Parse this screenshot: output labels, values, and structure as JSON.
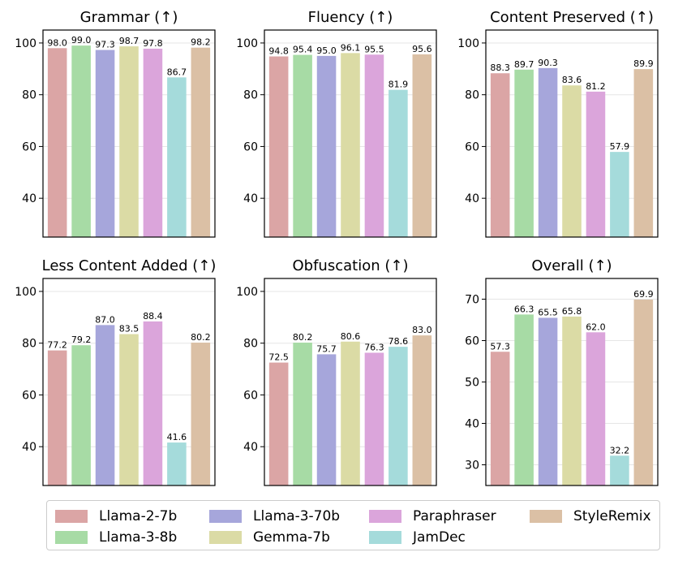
{
  "chart_data": [
    {
      "type": "bar",
      "title": "Grammar (↑)",
      "categories": [
        "Llama-2-7b",
        "Llama-3-8b",
        "Llama-3-70b",
        "Gemma-7b",
        "Paraphraser",
        "JamDec",
        "StyleRemix"
      ],
      "values": [
        98.0,
        99.0,
        97.3,
        98.7,
        97.8,
        86.7,
        98.2
      ],
      "value_labels": [
        "98.0",
        "99.0",
        "97.3",
        "98.7",
        "97.8",
        "86.7",
        "98.2"
      ],
      "ylim": [
        25,
        105
      ],
      "yticks": [
        40,
        60,
        80,
        100
      ],
      "ytick_labels": [
        "40",
        "60",
        "80",
        "100"
      ],
      "grid": true
    },
    {
      "type": "bar",
      "title": "Fluency (↑)",
      "categories": [
        "Llama-2-7b",
        "Llama-3-8b",
        "Llama-3-70b",
        "Gemma-7b",
        "Paraphraser",
        "JamDec",
        "StyleRemix"
      ],
      "values": [
        94.8,
        95.4,
        95.0,
        96.1,
        95.5,
        81.9,
        95.6
      ],
      "value_labels": [
        "94.8",
        "95.4",
        "95.0",
        "96.1",
        "95.5",
        "81.9",
        "95.6"
      ],
      "ylim": [
        25,
        105
      ],
      "yticks": [
        40,
        60,
        80,
        100
      ],
      "ytick_labels": [
        "40",
        "60",
        "80",
        "100"
      ],
      "grid": true
    },
    {
      "type": "bar",
      "title": "Content Preserved (↑)",
      "categories": [
        "Llama-2-7b",
        "Llama-3-8b",
        "Llama-3-70b",
        "Gemma-7b",
        "Paraphraser",
        "JamDec",
        "StyleRemix"
      ],
      "values": [
        88.3,
        89.7,
        90.3,
        83.6,
        81.2,
        57.9,
        89.9
      ],
      "value_labels": [
        "88.3",
        "89.7",
        "90.3",
        "83.6",
        "81.2",
        "57.9",
        "89.9"
      ],
      "ylim": [
        25,
        105
      ],
      "yticks": [
        40,
        60,
        80,
        100
      ],
      "ytick_labels": [
        "40",
        "60",
        "80",
        "100"
      ],
      "grid": true
    },
    {
      "type": "bar",
      "title": "Less Content Added (↑)",
      "categories": [
        "Llama-2-7b",
        "Llama-3-8b",
        "Llama-3-70b",
        "Gemma-7b",
        "Paraphraser",
        "JamDec",
        "StyleRemix"
      ],
      "values": [
        77.2,
        79.2,
        87.0,
        83.5,
        88.4,
        41.6,
        80.2
      ],
      "value_labels": [
        "77.2",
        "79.2",
        "87.0",
        "83.5",
        "88.4",
        "41.6",
        "80.2"
      ],
      "ylim": [
        25,
        105
      ],
      "yticks": [
        40,
        60,
        80,
        100
      ],
      "ytick_labels": [
        "40",
        "60",
        "80",
        "100"
      ],
      "grid": true
    },
    {
      "type": "bar",
      "title": "Obfuscation (↑)",
      "categories": [
        "Llama-2-7b",
        "Llama-3-8b",
        "Llama-3-70b",
        "Gemma-7b",
        "Paraphraser",
        "JamDec",
        "StyleRemix"
      ],
      "values": [
        72.5,
        80.2,
        75.7,
        80.6,
        76.3,
        78.6,
        83.0
      ],
      "value_labels": [
        "72.5",
        "80.2",
        "75.7",
        "80.6",
        "76.3",
        "78.6",
        "83.0"
      ],
      "ylim": [
        25,
        105
      ],
      "yticks": [
        40,
        60,
        80,
        100
      ],
      "ytick_labels": [
        "40",
        "60",
        "80",
        "100"
      ],
      "grid": true
    },
    {
      "type": "bar",
      "title": "Overall (↑)",
      "categories": [
        "Llama-2-7b",
        "Llama-3-8b",
        "Llama-3-70b",
        "Gemma-7b",
        "Paraphraser",
        "JamDec",
        "StyleRemix"
      ],
      "values": [
        57.3,
        66.3,
        65.5,
        65.8,
        62.0,
        32.2,
        69.9
      ],
      "value_labels": [
        "57.3",
        "66.3",
        "65.5",
        "65.8",
        "62.0",
        "32.2",
        "69.9"
      ],
      "ylim": [
        25,
        75
      ],
      "yticks": [
        30,
        40,
        50,
        60,
        70
      ],
      "ytick_labels": [
        "30",
        "40",
        "50",
        "60",
        "70"
      ],
      "grid": true
    }
  ],
  "legend": {
    "placement": "bottom",
    "entries": [
      {
        "label": "Llama-2-7b",
        "color": "#dba5a5"
      },
      {
        "label": "Llama-3-8b",
        "color": "#a7dba5"
      },
      {
        "label": "Llama-3-70b",
        "color": "#a6a6db"
      },
      {
        "label": "Gemma-7b",
        "color": "#dbdba5"
      },
      {
        "label": "Paraphraser",
        "color": "#dba5db"
      },
      {
        "label": "JamDec",
        "color": "#a5dbdb"
      },
      {
        "label": "StyleRemix",
        "color": "#dbc0a5"
      }
    ]
  }
}
